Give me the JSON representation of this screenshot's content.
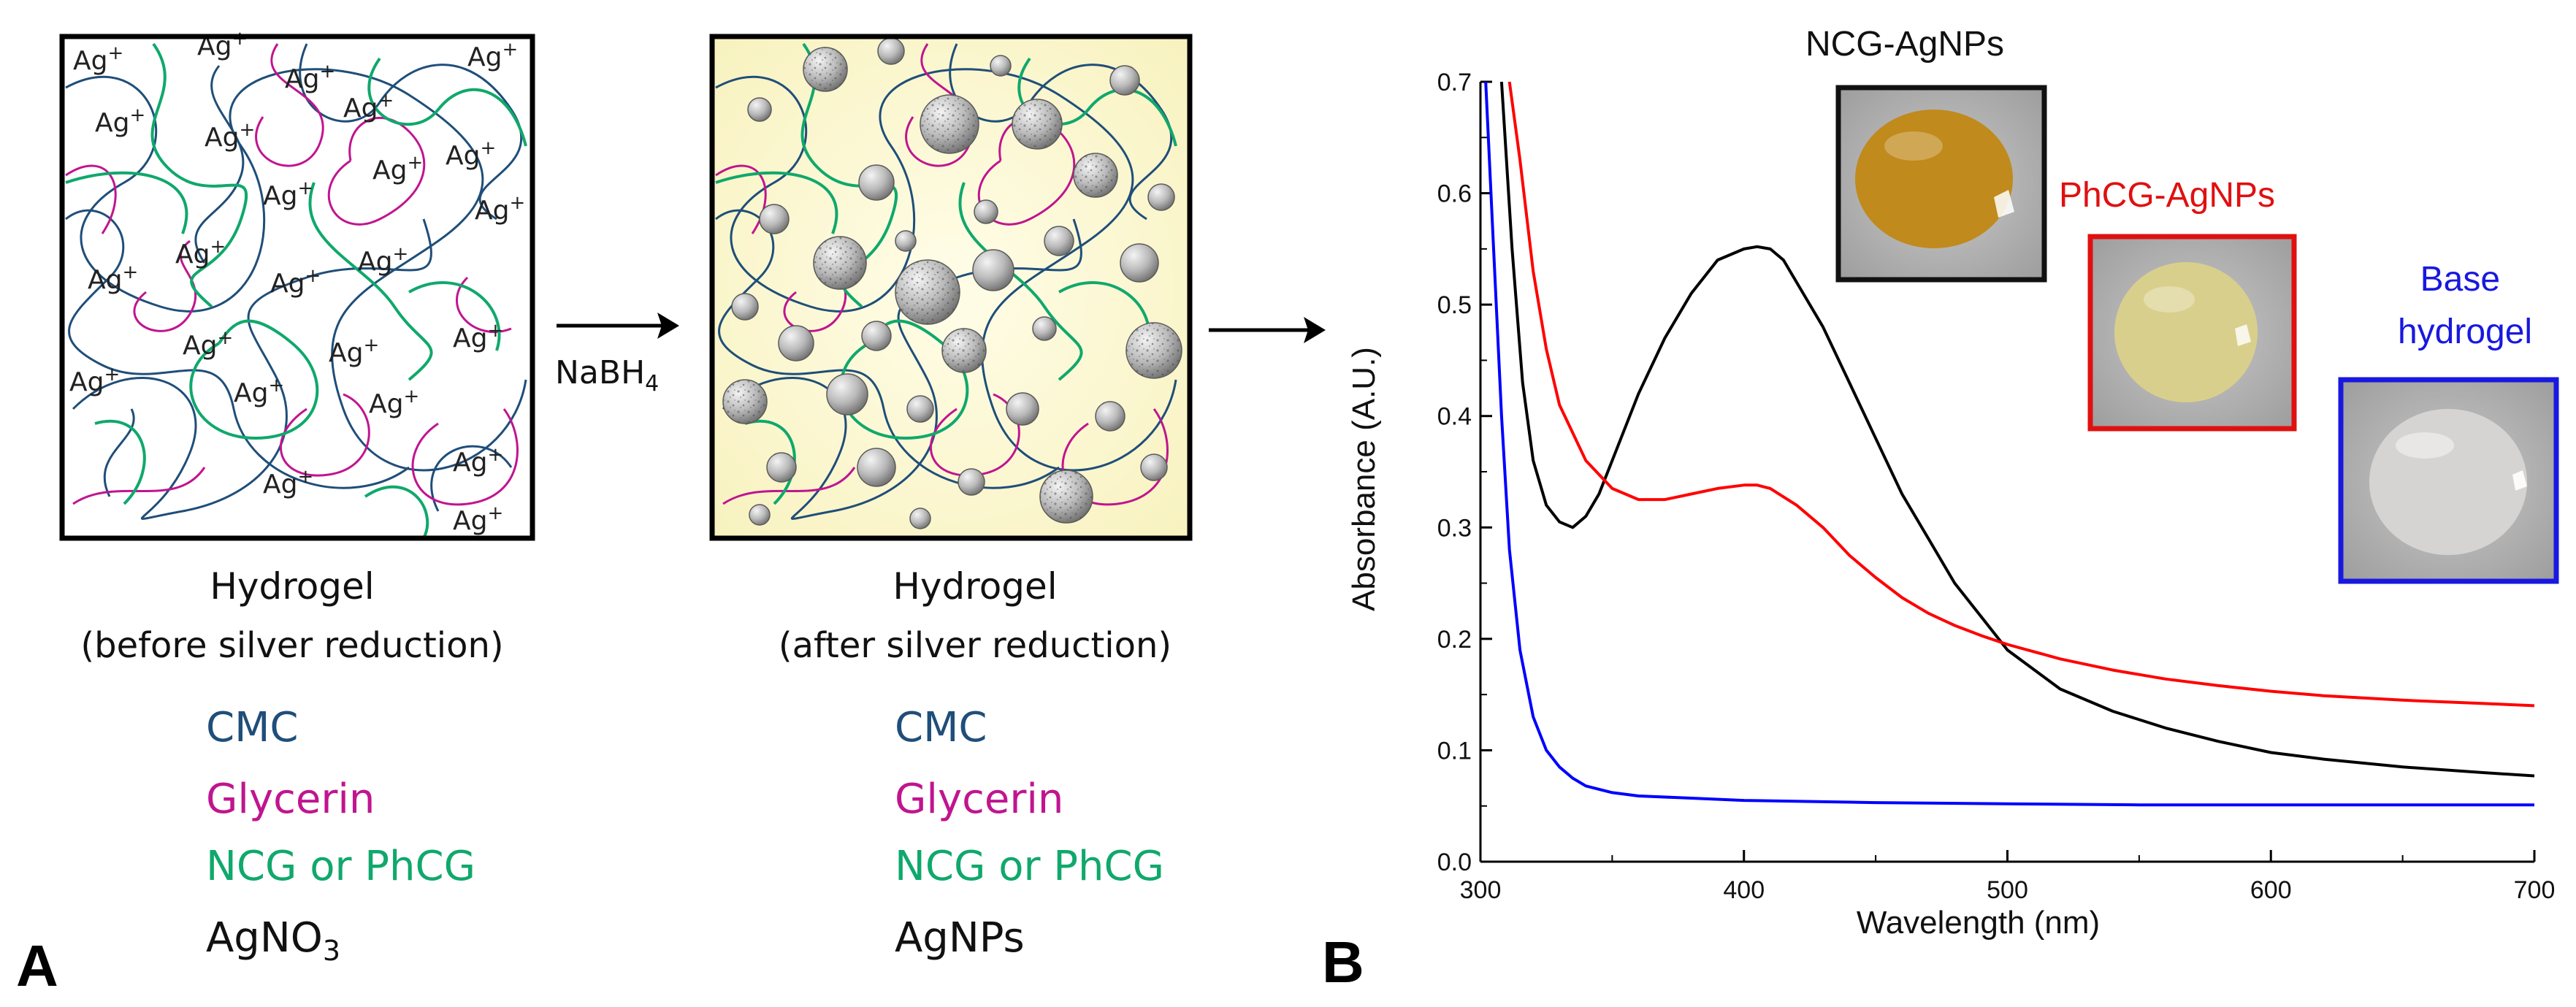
{
  "panel_a": {
    "label": "A",
    "arrow_reagent": "NaBH",
    "arrow_reagent_sub": "4",
    "before": {
      "title": "Hydrogel",
      "subtitle": "(before silver reduction)",
      "ion": "Ag",
      "ion_sup": "+",
      "legend": [
        {
          "text": "CMC",
          "color": "#1f4e79"
        },
        {
          "text": "Glycerin",
          "color": "#c0158f"
        },
        {
          "text": "NCG or PhCG",
          "color": "#10a86c"
        },
        {
          "text": "AgNO",
          "sub": "3",
          "color": "#111111"
        }
      ]
    },
    "after": {
      "title": "Hydrogel",
      "subtitle": "(after silver reduction)",
      "legend": [
        {
          "text": "CMC",
          "color": "#1f4e79"
        },
        {
          "text": "Glycerin",
          "color": "#c0158f"
        },
        {
          "text": "NCG or PhCG",
          "color": "#10a86c"
        },
        {
          "text": "AgNPs",
          "color": "#111111"
        }
      ]
    }
  },
  "panel_b": {
    "label": "B",
    "photos": [
      {
        "caption": "NCG-AgNPs",
        "color": "#111111",
        "blob": "#c08a1c",
        "frame": "#111111"
      },
      {
        "caption": "PhCG-AgNPs",
        "color": "#e01010",
        "blob": "#d9cf8c",
        "frame": "#e01010"
      },
      {
        "caption_lines": [
          "Base",
          "hydrogel"
        ],
        "color": "#1818e0",
        "blob": "#d6d4d2",
        "frame": "#1818e0"
      }
    ]
  },
  "chart_data": {
    "type": "line",
    "xlabel": "Wavelength (nm)",
    "ylabel": "Absorbance  (A.U.)",
    "xlim": [
      300,
      700
    ],
    "ylim": [
      0.0,
      0.7
    ],
    "xticks": [
      "300",
      "400",
      "500",
      "600",
      "700"
    ],
    "yticks": [
      "0.0",
      "0.1",
      "0.2",
      "0.3",
      "0.4",
      "0.5",
      "0.6",
      "0.7"
    ],
    "series": [
      {
        "name": "NCG-AgNPs",
        "color": "#000000",
        "x": [
          308,
          312,
          316,
          320,
          325,
          330,
          335,
          340,
          345,
          350,
          360,
          370,
          380,
          390,
          400,
          405,
          410,
          415,
          420,
          430,
          440,
          450,
          460,
          470,
          480,
          490,
          500,
          520,
          540,
          560,
          580,
          600,
          620,
          650,
          680,
          700
        ],
        "y": [
          0.7,
          0.55,
          0.43,
          0.36,
          0.32,
          0.305,
          0.3,
          0.31,
          0.33,
          0.36,
          0.42,
          0.47,
          0.51,
          0.54,
          0.55,
          0.552,
          0.55,
          0.54,
          0.52,
          0.48,
          0.43,
          0.38,
          0.33,
          0.29,
          0.25,
          0.22,
          0.19,
          0.155,
          0.135,
          0.12,
          0.108,
          0.098,
          0.092,
          0.085,
          0.08,
          0.077
        ]
      },
      {
        "name": "PhCG-AgNPs",
        "color": "#ff0000",
        "x": [
          311,
          315,
          320,
          325,
          330,
          340,
          350,
          360,
          370,
          380,
          390,
          400,
          405,
          410,
          420,
          430,
          440,
          450,
          460,
          470,
          480,
          490,
          500,
          520,
          540,
          560,
          580,
          600,
          620,
          650,
          680,
          700
        ],
        "y": [
          0.7,
          0.63,
          0.53,
          0.46,
          0.41,
          0.36,
          0.335,
          0.325,
          0.325,
          0.33,
          0.335,
          0.338,
          0.338,
          0.335,
          0.32,
          0.3,
          0.275,
          0.255,
          0.237,
          0.223,
          0.212,
          0.203,
          0.195,
          0.182,
          0.172,
          0.164,
          0.158,
          0.153,
          0.149,
          0.145,
          0.142,
          0.14
        ]
      },
      {
        "name": "Base hydrogel",
        "color": "#0000ff",
        "x": [
          302,
          305,
          308,
          311,
          315,
          320,
          325,
          330,
          335,
          340,
          350,
          360,
          380,
          400,
          450,
          500,
          550,
          600,
          650,
          700
        ],
        "y": [
          0.7,
          0.55,
          0.4,
          0.28,
          0.19,
          0.13,
          0.1,
          0.085,
          0.075,
          0.068,
          0.062,
          0.059,
          0.057,
          0.055,
          0.053,
          0.052,
          0.051,
          0.051,
          0.051,
          0.051
        ]
      }
    ]
  }
}
